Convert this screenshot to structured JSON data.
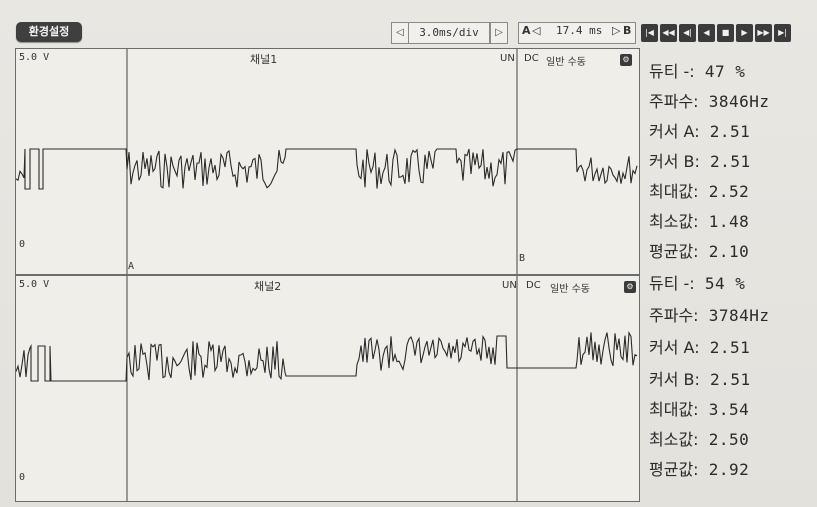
{
  "toolbar": {
    "settings_label": "환경설정",
    "time_div": "3.0ms/div",
    "cursor_a": "A",
    "cursor_b": "B",
    "cursor_time": "17.4 ms",
    "prev_arrow": "◁",
    "next_arrow": "▷"
  },
  "controls": [
    {
      "name": "first",
      "glyph": "|◀"
    },
    {
      "name": "rewind",
      "glyph": "◀◀"
    },
    {
      "name": "step-back",
      "glyph": "◀|"
    },
    {
      "name": "back",
      "glyph": "◀"
    },
    {
      "name": "stop",
      "glyph": "■"
    },
    {
      "name": "play",
      "glyph": "▶"
    },
    {
      "name": "fast-forward",
      "glyph": "▶▶"
    },
    {
      "name": "last",
      "glyph": "▶|"
    }
  ],
  "channel1": {
    "title": "채널1",
    "scale": "5.0 V",
    "zero": "0",
    "mode": "UN",
    "coupling": "DC",
    "trigger": "일반 수동",
    "marker_a": "A",
    "marker_b": "B",
    "readings": {
      "duty": {
        "label": "듀티 -:",
        "value": "47 %"
      },
      "freq": {
        "label": "주파수:",
        "value": "3846Hz"
      },
      "cursor_a": {
        "label": "커서 A:",
        "value": "2.51"
      },
      "cursor_b": {
        "label": "커서 B:",
        "value": "2.51"
      },
      "max": {
        "label": "최대값:",
        "value": "2.52"
      },
      "min": {
        "label": "최소값:",
        "value": "1.48"
      },
      "avg": {
        "label": "평균값:",
        "value": "2.10"
      }
    }
  },
  "channel2": {
    "title": "채널2",
    "scale": "5.0 V",
    "zero": "0",
    "mode": "UN",
    "coupling": "DC",
    "trigger": "일반 수동",
    "readings": {
      "duty": {
        "label": "듀티 -:",
        "value": "54 %"
      },
      "freq": {
        "label": "주파수:",
        "value": "3784Hz"
      },
      "cursor_a": {
        "label": "커서 A:",
        "value": "2.51"
      },
      "cursor_b": {
        "label": "커서 B:",
        "value": "2.51"
      },
      "max": {
        "label": "최대값:",
        "value": "3.54"
      },
      "min": {
        "label": "최소값:",
        "value": "2.50"
      },
      "avg": {
        "label": "평균값:",
        "value": "2.92"
      }
    }
  },
  "colors": {
    "panel_bg": "#f0eee9",
    "trace": "#2a2a2a",
    "button_dark": "#3b3b3b"
  }
}
